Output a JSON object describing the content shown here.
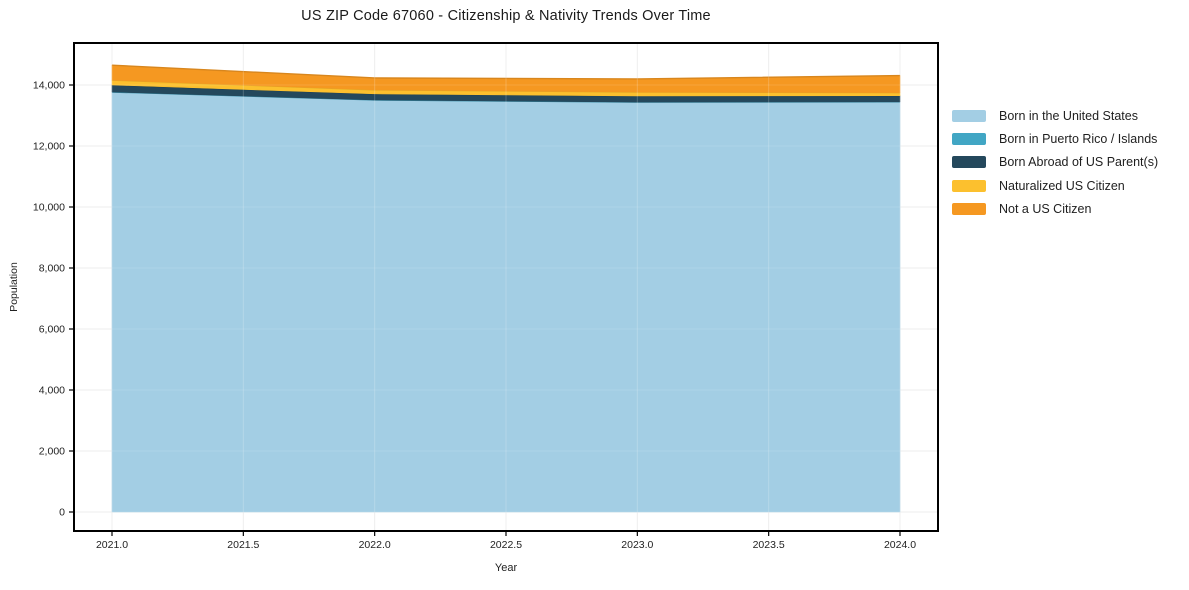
{
  "title": "US ZIP Code 67060 - Citizenship & Nativity Trends Over Time",
  "chart_data": {
    "type": "area",
    "stacked": true,
    "title": "US ZIP Code 67060 - Citizenship & Nativity Trends Over Time",
    "xlabel": "Year",
    "ylabel": "Population",
    "x": [
      2021,
      2022,
      2023,
      2024
    ],
    "series": [
      {
        "name": "Born in the United States",
        "color": "#a3cee4",
        "values": [
          13770,
          13510,
          13440,
          13450
        ]
      },
      {
        "name": "Born in Puerto Rico / Islands",
        "color": "#41a6c4",
        "values": [
          0,
          0,
          0,
          0
        ]
      },
      {
        "name": "Born Abroad of US Parent(s)",
        "color": "#24485c",
        "values": [
          230,
          200,
          200,
          200
        ]
      },
      {
        "name": "Naturalized US Citizen",
        "color": "#fcc02e",
        "values": [
          160,
          130,
          130,
          100
        ]
      },
      {
        "name": "Not a US Citizen",
        "color": "#f59821",
        "values": [
          490,
          390,
          430,
          560
        ]
      }
    ],
    "totals": [
      14650,
      14230,
      14200,
      14310
    ],
    "x_tick_labels": [
      "2021.0",
      "2021.5",
      "2022.0",
      "2022.5",
      "2023.0",
      "2023.5",
      "2024.0"
    ],
    "x_tick_values": [
      2021,
      2021.5,
      2022,
      2022.5,
      2023,
      2023.5,
      2024
    ],
    "y_tick_labels": [
      "0",
      "2,000",
      "4,000",
      "6,000",
      "8,000",
      "10,000",
      "12,000",
      "14,000"
    ],
    "y_tick_values": [
      0,
      2000,
      4000,
      6000,
      8000,
      10000,
      12000,
      14000
    ],
    "xlim": [
      2020.855,
      2024.145
    ],
    "ylim": [
      0,
      15400
    ],
    "grid": true,
    "legend_position": "right",
    "grid_color": "#ebebeb",
    "border_color": "#000000",
    "tick_text_color": "#222222"
  }
}
